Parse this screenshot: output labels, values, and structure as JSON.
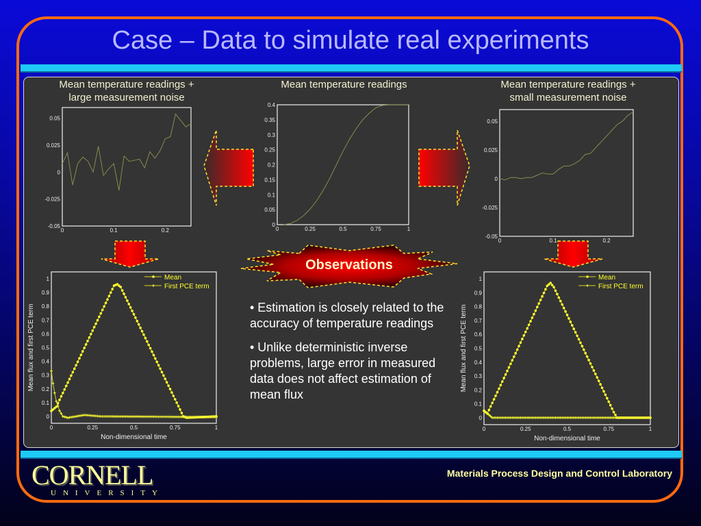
{
  "title": "Case – Data to simulate real experiments",
  "panel_titles": {
    "left": "Mean temperature readings +\nlarge measurement noise",
    "center": "Mean temperature readings",
    "right": "Mean temperature readings +\nsmall measurement noise"
  },
  "observations_label": "Observations",
  "bullets": [
    "• Estimation is closely related to the accuracy of temperature readings",
    "• Unlike deterministic inverse problems, large error in measured data does not affect estimation of mean flux"
  ],
  "footer": {
    "lab": "Materials Process Design and Control Laboratory",
    "logo_main": "CORNELL",
    "logo_sub": "UNIVERSITY"
  },
  "colors": {
    "accent": "#ff6a10",
    "bar": "#1ecbf6",
    "line": "#8a8a50",
    "marker": "#ffff30"
  },
  "chart_data": [
    {
      "id": "noisy",
      "type": "line",
      "title": "Mean temperature readings + large measurement noise",
      "xlim": [
        0,
        0.25
      ],
      "ylim": [
        -0.05,
        0.06
      ],
      "xticks": [
        0,
        0.1,
        0.2
      ],
      "xtick_labels": [
        "0",
        "0.1",
        "0.2"
      ],
      "yticks": [
        -0.05,
        -0.025,
        0,
        0.025,
        0.05
      ],
      "ytick_labels": [
        "-0.05",
        "-0.025",
        "0",
        "0.025",
        "0.05"
      ],
      "series": [
        {
          "name": "noisy",
          "x": [
            0,
            0.01,
            0.02,
            0.03,
            0.04,
            0.05,
            0.06,
            0.07,
            0.08,
            0.09,
            0.1,
            0.11,
            0.12,
            0.13,
            0.14,
            0.15,
            0.16,
            0.17,
            0.18,
            0.19,
            0.2,
            0.21,
            0.22,
            0.23,
            0.24,
            0.25
          ],
          "y": [
            0.008,
            0.018,
            -0.012,
            0.008,
            0.014,
            0.01,
            0,
            0.024,
            -0.003,
            0.003,
            0.008,
            -0.017,
            0.015,
            0.01,
            0.011,
            0.012,
            0.004,
            0.019,
            0.013,
            0.02,
            0.031,
            0.033,
            0.054,
            0.048,
            0.042,
            0.045
          ]
        }
      ]
    },
    {
      "id": "exact",
      "type": "line",
      "title": "Mean temperature readings",
      "xlim": [
        0,
        1
      ],
      "ylim": [
        0,
        0.4
      ],
      "xticks": [
        0,
        0.25,
        0.5,
        0.75,
        1
      ],
      "xtick_labels": [
        "0",
        "0.25",
        "0.5",
        "0.75",
        "1"
      ],
      "yticks": [
        0,
        0.05,
        0.1,
        0.15,
        0.2,
        0.25,
        0.3,
        0.35,
        0.4
      ],
      "ytick_labels": [
        "0",
        "0.05",
        "0.1",
        "0.15",
        "0.2",
        "0.25",
        "0.3",
        "0.35",
        "0.4"
      ],
      "series": [
        {
          "name": "exact",
          "x": [
            0.05,
            0.1,
            0.15,
            0.2,
            0.25,
            0.3,
            0.35,
            0.4,
            0.45,
            0.5,
            0.55,
            0.6,
            0.65,
            0.7,
            0.75,
            0.8,
            0.85,
            1
          ],
          "y": [
            0,
            0.004,
            0.014,
            0.03,
            0.052,
            0.08,
            0.115,
            0.155,
            0.2,
            0.245,
            0.285,
            0.32,
            0.35,
            0.372,
            0.39,
            0.398,
            0.4,
            0.4
          ]
        }
      ]
    },
    {
      "id": "small_noise",
      "type": "line",
      "title": "Mean temperature readings + small measurement noise",
      "xlim": [
        0,
        0.25
      ],
      "ylim": [
        -0.05,
        0.06
      ],
      "xticks": [
        0,
        0.1,
        0.2
      ],
      "xtick_labels": [
        "0",
        "0.1",
        "0.2"
      ],
      "yticks": [
        -0.05,
        -0.025,
        0,
        0.025,
        0.05
      ],
      "ytick_labels": [
        "-0.05",
        "-0.025",
        "0",
        "0.025",
        "0.05"
      ],
      "series": [
        {
          "name": "small noise",
          "x": [
            0,
            0.01,
            0.02,
            0.03,
            0.04,
            0.05,
            0.06,
            0.07,
            0.08,
            0.09,
            0.1,
            0.11,
            0.12,
            0.13,
            0.14,
            0.15,
            0.16,
            0.17,
            0.18,
            0.19,
            0.2,
            0.21,
            0.22,
            0.23,
            0.24,
            0.25
          ],
          "y": [
            0,
            -0.001,
            0.001,
            0.001,
            0,
            0.001,
            0.001,
            0.003,
            0.005,
            0.004,
            0.004,
            0.008,
            0.011,
            0.011,
            0.013,
            0.016,
            0.021,
            0.022,
            0.027,
            0.032,
            0.037,
            0.042,
            0.047,
            0.05,
            0.055,
            0.058
          ]
        }
      ]
    },
    {
      "id": "flux_large",
      "type": "line",
      "xlabel": "Non-dimensional time",
      "ylabel": "Mean flux and first PCE term",
      "xlim": [
        0,
        1
      ],
      "ylim": [
        -0.05,
        1.05
      ],
      "xticks": [
        0,
        0.25,
        0.5,
        0.75,
        1
      ],
      "xtick_labels": [
        "0",
        "0.25",
        "0.5",
        "0.75",
        "1"
      ],
      "yticks": [
        0,
        0.1,
        0.2,
        0.3,
        0.4,
        0.5,
        0.6,
        0.7,
        0.8,
        0.9,
        1
      ],
      "ytick_labels": [
        "0",
        "0.1",
        "0.2",
        "0.3",
        "0.4",
        "0.5",
        "0.6",
        "0.7",
        "0.8",
        "0.9",
        "1"
      ],
      "legend": "top-right",
      "series": [
        {
          "name": "Mean",
          "marker": "dot",
          "x": [
            0,
            0.03,
            0.38,
            0.4,
            0.42,
            0.78,
            0.8,
            0.82,
            1
          ],
          "y": [
            0.04,
            0.07,
            0.95,
            0.96,
            0.94,
            0.05,
            0,
            -0.01,
            0
          ]
        },
        {
          "name": "First PCE term",
          "marker": "plus",
          "x": [
            0,
            0.01,
            0.02,
            0.03,
            0.05,
            0.07,
            0.1,
            0.2,
            0.3,
            1
          ],
          "y": [
            0.33,
            0.24,
            0.17,
            0.11,
            0.04,
            0,
            -0.01,
            0.01,
            0,
            -0.005
          ]
        }
      ]
    },
    {
      "id": "flux_small",
      "type": "line",
      "xlabel": "Non-dimensional time",
      "ylabel": "Mean flux and first PCE term",
      "xlim": [
        0,
        1
      ],
      "ylim": [
        -0.05,
        1.05
      ],
      "xticks": [
        0,
        0.25,
        0.5,
        0.75,
        1
      ],
      "xtick_labels": [
        "0",
        "0.25",
        "0.5",
        "0.75",
        "1"
      ],
      "yticks": [
        0,
        0.1,
        0.2,
        0.3,
        0.4,
        0.5,
        0.6,
        0.7,
        0.8,
        0.9,
        1
      ],
      "ytick_labels": [
        "0",
        "0.1",
        "0.2",
        "0.3",
        "0.4",
        "0.5",
        "0.6",
        "0.7",
        "0.8",
        "0.9",
        "1"
      ],
      "legend": "top-right",
      "series": [
        {
          "name": "Mean",
          "marker": "dot",
          "x": [
            0,
            0.02,
            0.38,
            0.4,
            0.42,
            0.78,
            0.8,
            1
          ],
          "y": [
            0.05,
            0.03,
            0.95,
            0.97,
            0.94,
            0.04,
            0,
            0
          ]
        },
        {
          "name": "First PCE term",
          "marker": "plus",
          "x": [
            0,
            0.02,
            0.05,
            1
          ],
          "y": [
            0.05,
            0.03,
            0,
            0
          ]
        }
      ]
    }
  ]
}
